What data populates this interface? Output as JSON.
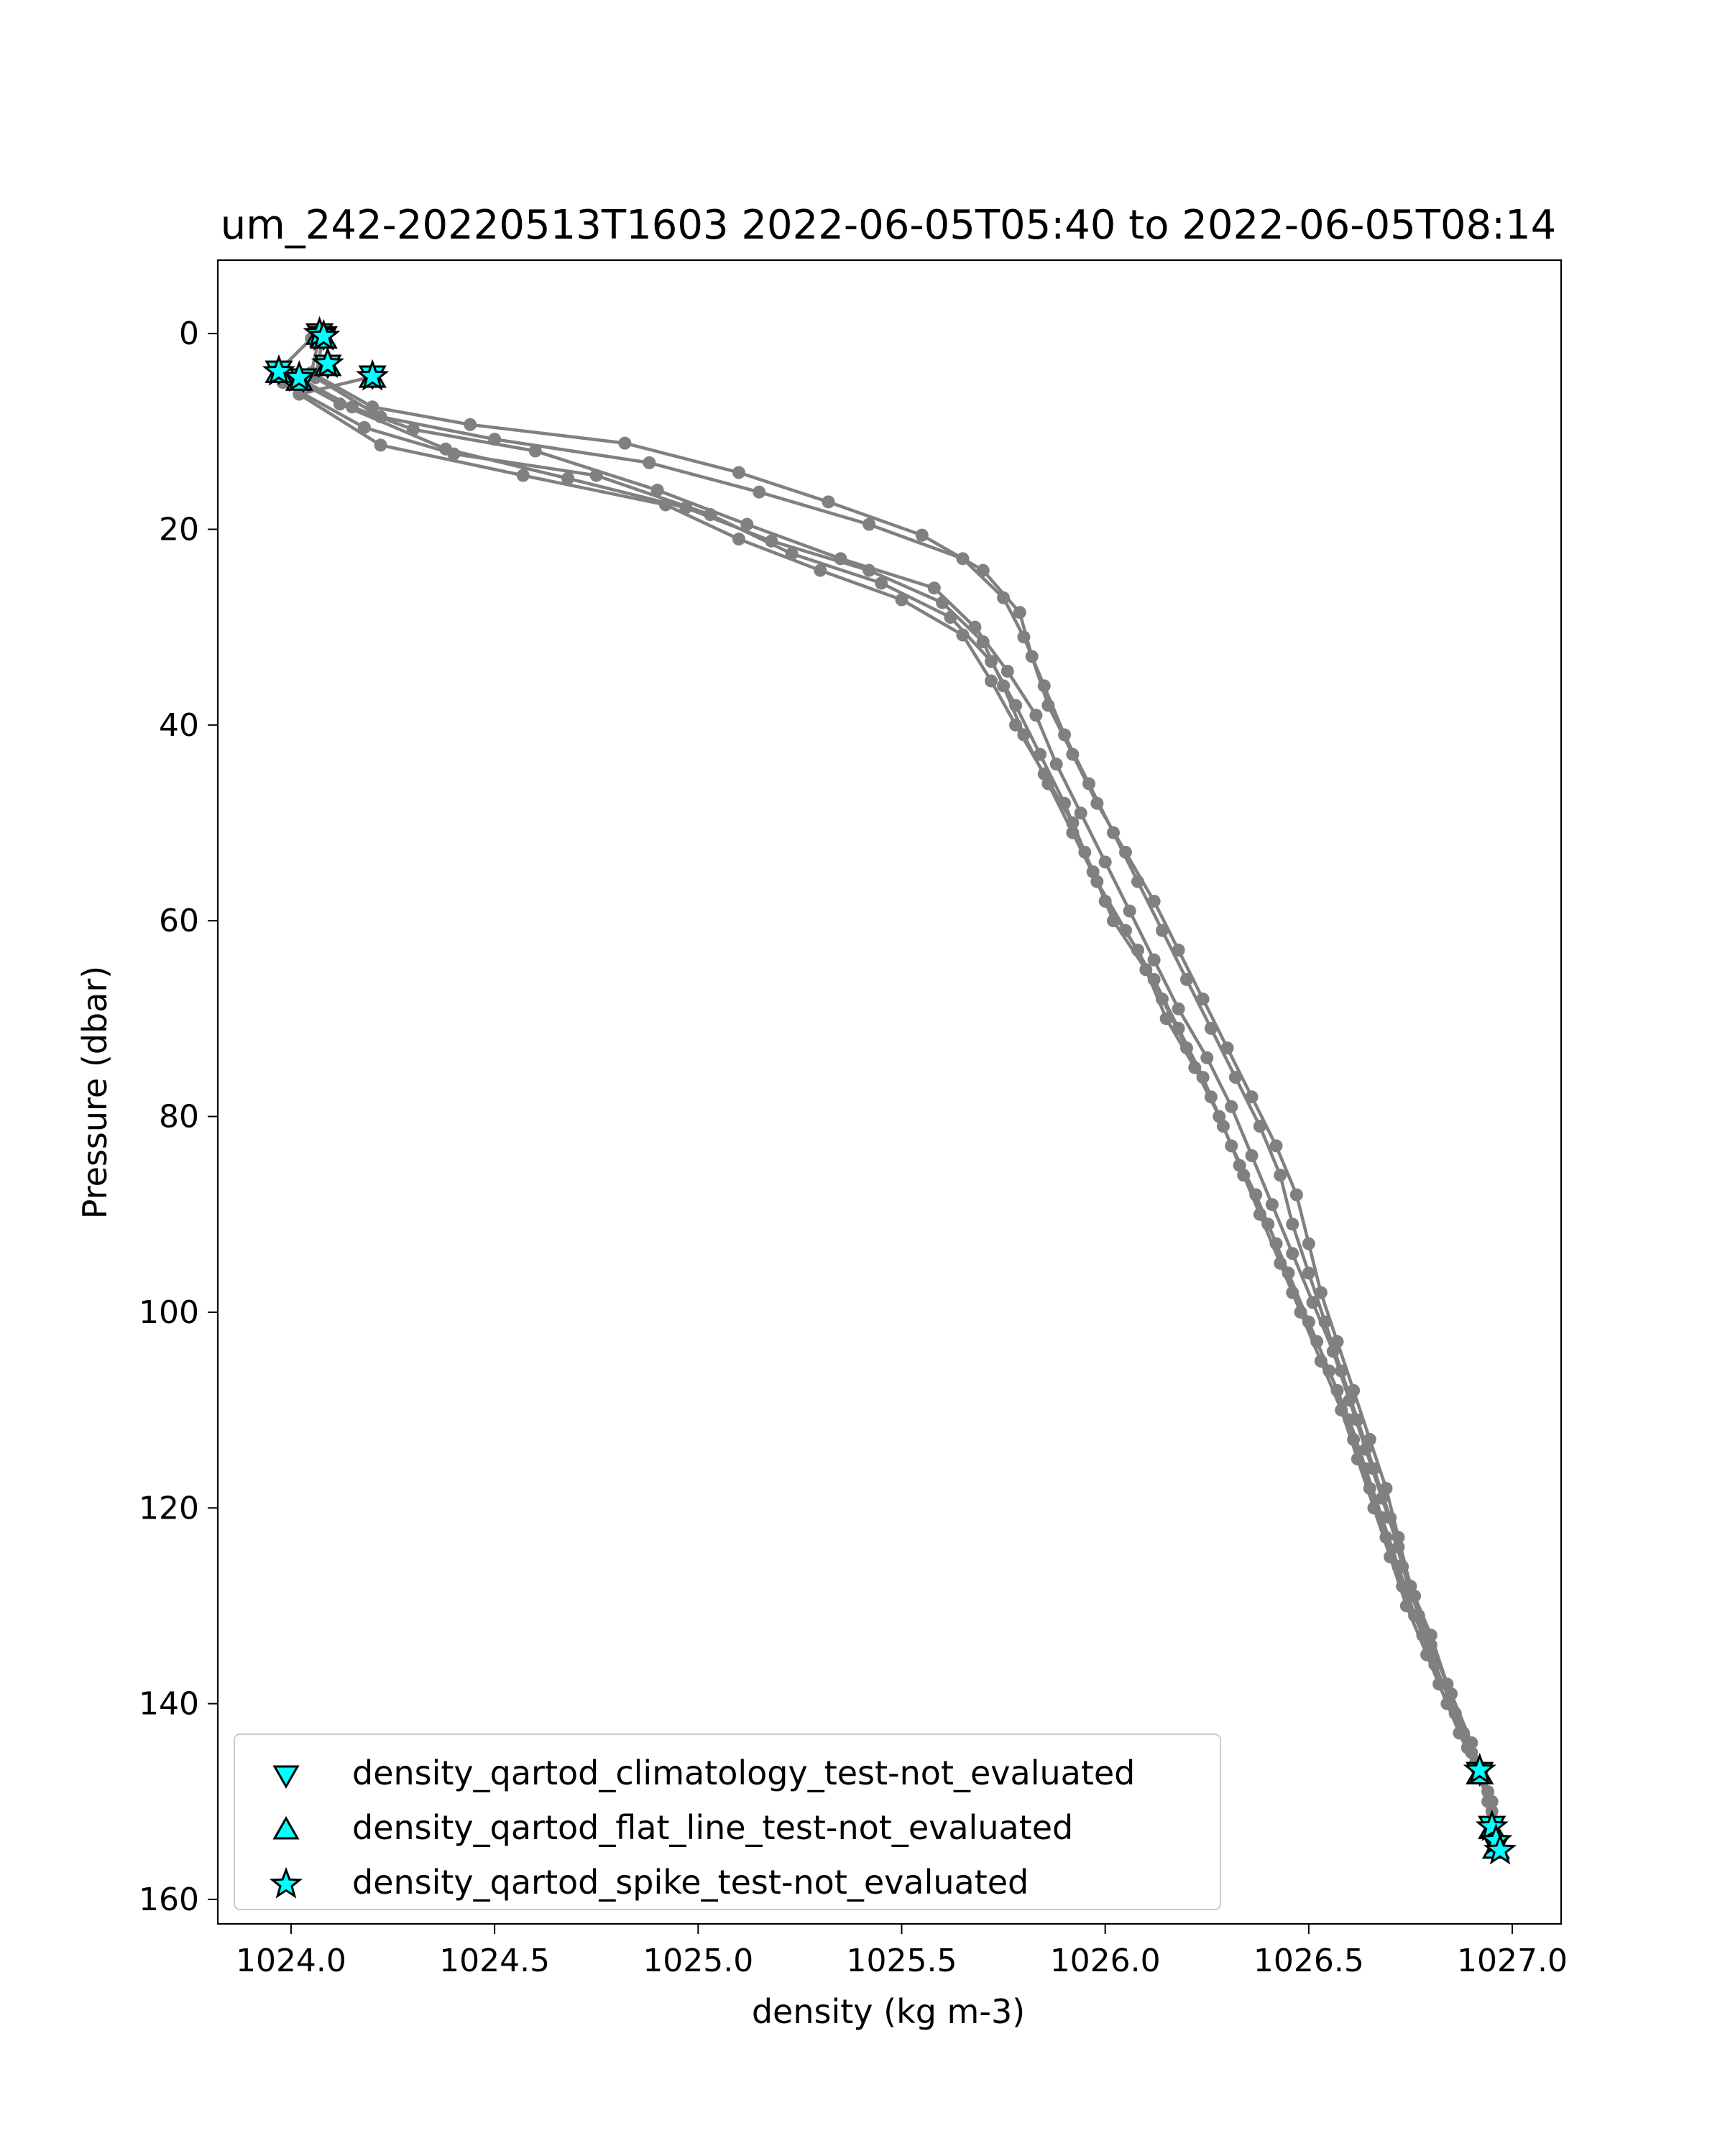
{
  "chart_data": {
    "type": "scatter",
    "title": "um_242-20220513T1603 2022-06-05T05:40 to 2022-06-05T08:14",
    "xlabel": "density (kg m-3)",
    "ylabel": "Pressure (dbar)",
    "xlim": [
      1023.82,
      1027.12
    ],
    "ylim": [
      162.5,
      -7.5
    ],
    "y_inverted": true,
    "xticks": [
      "1024.0",
      "1024.5",
      "1025.0",
      "1025.5",
      "1026.0",
      "1026.5",
      "1027.0"
    ],
    "xtick_values": [
      1024.0,
      1024.5,
      1025.0,
      1025.5,
      1026.0,
      1026.5,
      1027.0
    ],
    "yticks": [
      "0",
      "20",
      "40",
      "60",
      "80",
      "100",
      "120",
      "140",
      "160"
    ],
    "ytick_values": [
      0,
      20,
      40,
      60,
      80,
      100,
      120,
      140,
      160
    ],
    "grid": false,
    "legend_position": "lower-left",
    "colors": {
      "profile": "#808080",
      "flag_fill": "#00ffff",
      "flag_edge": "#000000"
    },
    "series": [
      {
        "kind": "profile",
        "points": [
          [
            1024.07,
            0.2
          ],
          [
            1024.05,
            4.0
          ],
          [
            1024.2,
            7.5
          ],
          [
            1024.44,
            9.3
          ],
          [
            1024.82,
            11.2
          ],
          [
            1025.1,
            14.2
          ],
          [
            1025.32,
            17.2
          ],
          [
            1025.55,
            20.6
          ],
          [
            1025.7,
            24.2
          ],
          [
            1025.79,
            28.5
          ],
          [
            1025.82,
            33.0
          ],
          [
            1025.86,
            38.0
          ],
          [
            1025.92,
            43.0
          ],
          [
            1025.98,
            48.0
          ],
          [
            1026.05,
            53.0
          ],
          [
            1026.12,
            58.0
          ],
          [
            1026.18,
            63.0
          ],
          [
            1026.24,
            68.0
          ],
          [
            1026.3,
            73.0
          ],
          [
            1026.36,
            78.0
          ],
          [
            1026.42,
            83.0
          ],
          [
            1026.47,
            88.0
          ],
          [
            1026.5,
            93.0
          ],
          [
            1026.53,
            98.0
          ],
          [
            1026.57,
            103.0
          ],
          [
            1026.61,
            108.0
          ],
          [
            1026.65,
            113.0
          ],
          [
            1026.69,
            118.0
          ],
          [
            1026.72,
            123.0
          ],
          [
            1026.75,
            128.0
          ],
          [
            1026.8,
            133.0
          ],
          [
            1026.84,
            138.0
          ],
          [
            1026.88,
            143.0
          ],
          [
            1026.92,
            147.0
          ],
          [
            1026.95,
            152.0
          ],
          [
            1026.96,
            155.0
          ]
        ]
      },
      {
        "kind": "profile",
        "points": [
          [
            1024.08,
            0.0
          ],
          [
            1024.06,
            4.5
          ],
          [
            1024.22,
            8.5
          ],
          [
            1024.5,
            10.8
          ],
          [
            1024.88,
            13.2
          ],
          [
            1025.15,
            16.2
          ],
          [
            1025.42,
            19.5
          ],
          [
            1025.65,
            23.0
          ],
          [
            1025.75,
            27.0
          ],
          [
            1025.8,
            31.0
          ],
          [
            1025.85,
            36.0
          ],
          [
            1025.9,
            41.0
          ],
          [
            1025.96,
            46.0
          ],
          [
            1026.02,
            51.0
          ],
          [
            1026.08,
            56.0
          ],
          [
            1026.14,
            61.0
          ],
          [
            1026.2,
            66.0
          ],
          [
            1026.26,
            71.0
          ],
          [
            1026.32,
            76.0
          ],
          [
            1026.38,
            81.0
          ],
          [
            1026.43,
            86.0
          ],
          [
            1026.46,
            91.0
          ],
          [
            1026.5,
            96.0
          ],
          [
            1026.54,
            101.0
          ],
          [
            1026.58,
            106.0
          ],
          [
            1026.62,
            111.0
          ],
          [
            1026.66,
            116.0
          ],
          [
            1026.7,
            121.0
          ],
          [
            1026.73,
            126.0
          ],
          [
            1026.77,
            131.0
          ],
          [
            1026.81,
            136.0
          ],
          [
            1026.86,
            141.0
          ],
          [
            1026.9,
            145.0
          ],
          [
            1026.94,
            150.0
          ],
          [
            1026.95,
            153.0
          ]
        ]
      },
      {
        "kind": "profile",
        "points": [
          [
            1024.09,
            3.2
          ],
          [
            1023.98,
            5.0
          ],
          [
            1024.18,
            9.6
          ],
          [
            1024.4,
            12.3
          ],
          [
            1024.75,
            14.5
          ],
          [
            1025.03,
            18.5
          ],
          [
            1025.23,
            22.5
          ],
          [
            1025.45,
            25.5
          ],
          [
            1025.62,
            29.0
          ],
          [
            1025.72,
            33.5
          ],
          [
            1025.78,
            38.0
          ],
          [
            1025.84,
            43.0
          ],
          [
            1025.9,
            48.0
          ],
          [
            1025.95,
            53.0
          ],
          [
            1026.0,
            58.0
          ],
          [
            1026.08,
            63.0
          ],
          [
            1026.14,
            68.0
          ],
          [
            1026.2,
            73.0
          ],
          [
            1026.26,
            78.0
          ],
          [
            1026.31,
            83.0
          ],
          [
            1026.37,
            88.0
          ],
          [
            1026.42,
            93.0
          ],
          [
            1026.46,
            98.0
          ],
          [
            1026.52,
            103.0
          ],
          [
            1026.57,
            108.0
          ],
          [
            1026.61,
            113.0
          ],
          [
            1026.65,
            118.0
          ],
          [
            1026.69,
            123.0
          ],
          [
            1026.73,
            128.0
          ],
          [
            1026.78,
            133.0
          ],
          [
            1026.82,
            138.0
          ],
          [
            1026.87,
            143.0
          ],
          [
            1026.92,
            147.5
          ]
        ]
      },
      {
        "kind": "profile",
        "points": [
          [
            1024.05,
            0.5
          ],
          [
            1023.97,
            3.8
          ],
          [
            1024.12,
            7.2
          ],
          [
            1024.38,
            11.8
          ],
          [
            1024.68,
            14.8
          ],
          [
            1024.97,
            17.8
          ],
          [
            1025.18,
            21.2
          ],
          [
            1025.42,
            24.2
          ],
          [
            1025.6,
            27.5
          ],
          [
            1025.7,
            31.5
          ],
          [
            1025.75,
            36.0
          ],
          [
            1025.8,
            41.0
          ],
          [
            1025.86,
            46.0
          ],
          [
            1025.92,
            51.0
          ],
          [
            1025.98,
            56.0
          ],
          [
            1026.05,
            61.0
          ],
          [
            1026.12,
            66.0
          ],
          [
            1026.18,
            71.0
          ],
          [
            1026.24,
            76.0
          ],
          [
            1026.29,
            81.0
          ],
          [
            1026.34,
            86.0
          ],
          [
            1026.4,
            91.0
          ],
          [
            1026.45,
            96.0
          ],
          [
            1026.5,
            101.0
          ],
          [
            1026.55,
            106.0
          ],
          [
            1026.6,
            111.0
          ],
          [
            1026.64,
            116.0
          ],
          [
            1026.68,
            121.0
          ],
          [
            1026.72,
            126.0
          ],
          [
            1026.76,
            131.0
          ],
          [
            1026.81,
            136.0
          ],
          [
            1026.86,
            141.0
          ],
          [
            1026.91,
            146.0
          ],
          [
            1026.95,
            151.0
          ],
          [
            1026.96,
            154.0
          ]
        ]
      },
      {
        "kind": "profile",
        "points": [
          [
            1024.2,
            4.4
          ],
          [
            1024.02,
            6.2
          ],
          [
            1024.22,
            11.4
          ],
          [
            1024.57,
            14.5
          ],
          [
            1024.92,
            17.5
          ],
          [
            1025.1,
            21.0
          ],
          [
            1025.3,
            24.2
          ],
          [
            1025.5,
            27.2
          ],
          [
            1025.65,
            30.8
          ],
          [
            1025.72,
            35.5
          ],
          [
            1025.78,
            40.0
          ],
          [
            1025.85,
            45.0
          ],
          [
            1025.92,
            50.0
          ],
          [
            1025.97,
            55.0
          ],
          [
            1026.02,
            60.0
          ],
          [
            1026.1,
            65.0
          ],
          [
            1026.15,
            70.0
          ],
          [
            1026.22,
            75.0
          ],
          [
            1026.28,
            80.0
          ],
          [
            1026.33,
            85.0
          ],
          [
            1026.38,
            90.0
          ],
          [
            1026.43,
            95.0
          ],
          [
            1026.48,
            100.0
          ],
          [
            1026.53,
            105.0
          ],
          [
            1026.58,
            110.0
          ],
          [
            1026.62,
            115.0
          ],
          [
            1026.66,
            120.0
          ],
          [
            1026.7,
            125.0
          ],
          [
            1026.74,
            130.0
          ],
          [
            1026.79,
            135.0
          ],
          [
            1026.84,
            140.0
          ],
          [
            1026.89,
            144.5
          ],
          [
            1026.94,
            149.0
          ],
          [
            1026.96,
            153.5
          ]
        ]
      },
      {
        "kind": "profile",
        "points": [
          [
            1024.03,
            4.8
          ],
          [
            1024.15,
            7.5
          ],
          [
            1024.3,
            9.8
          ],
          [
            1024.6,
            12.0
          ],
          [
            1024.9,
            16.0
          ],
          [
            1025.12,
            19.5
          ],
          [
            1025.35,
            23.0
          ],
          [
            1025.58,
            26.0
          ],
          [
            1025.68,
            30.0
          ],
          [
            1025.76,
            34.5
          ],
          [
            1025.83,
            39.0
          ],
          [
            1025.88,
            44.0
          ],
          [
            1025.94,
            49.0
          ],
          [
            1026.0,
            54.0
          ],
          [
            1026.06,
            59.0
          ],
          [
            1026.12,
            64.0
          ],
          [
            1026.18,
            69.0
          ],
          [
            1026.25,
            74.0
          ],
          [
            1026.31,
            79.0
          ],
          [
            1026.36,
            84.0
          ],
          [
            1026.41,
            89.0
          ],
          [
            1026.46,
            94.0
          ],
          [
            1026.51,
            99.0
          ],
          [
            1026.56,
            104.0
          ],
          [
            1026.6,
            109.0
          ],
          [
            1026.64,
            114.0
          ],
          [
            1026.68,
            119.0
          ],
          [
            1026.72,
            124.0
          ],
          [
            1026.76,
            129.0
          ],
          [
            1026.8,
            134.0
          ],
          [
            1026.85,
            139.0
          ],
          [
            1026.9,
            144.0
          ],
          [
            1026.95,
            150.0
          ],
          [
            1026.97,
            154.8
          ]
        ]
      }
    ],
    "legend": [
      {
        "marker": "triangle-down",
        "label": "density_qartod_climatology_test-not_evaluated"
      },
      {
        "marker": "triangle-up",
        "label": "density_qartod_flat_line_test-not_evaluated"
      },
      {
        "marker": "star",
        "label": "density_qartod_spike_test-not_evaluated"
      }
    ],
    "flagged_points": {
      "climatology": [
        [
          1024.07,
          0.0
        ],
        [
          1024.08,
          0.3
        ],
        [
          1023.97,
          3.8
        ],
        [
          1024.03,
          4.6
        ],
        [
          1024.2,
          4.3
        ],
        [
          1024.09,
          3.2
        ],
        [
          1026.92,
          147.0
        ],
        [
          1026.95,
          152.5
        ],
        [
          1026.96,
          154.5
        ]
      ],
      "flat_line": [
        [
          1024.07,
          0.1
        ],
        [
          1024.08,
          0.5
        ],
        [
          1023.97,
          4.0
        ],
        [
          1024.02,
          4.8
        ],
        [
          1024.2,
          4.5
        ],
        [
          1024.09,
          3.3
        ],
        [
          1026.92,
          147.2
        ],
        [
          1026.95,
          152.8
        ],
        [
          1026.96,
          154.8
        ]
      ],
      "spike": [
        [
          1024.07,
          0.0
        ],
        [
          1024.08,
          0.3
        ],
        [
          1023.97,
          3.9
        ],
        [
          1024.02,
          4.5
        ],
        [
          1024.2,
          4.4
        ],
        [
          1024.09,
          3.1
        ],
        [
          1026.92,
          146.8
        ],
        [
          1026.95,
          152.6
        ],
        [
          1026.96,
          154.0
        ],
        [
          1026.97,
          155.0
        ]
      ]
    }
  }
}
